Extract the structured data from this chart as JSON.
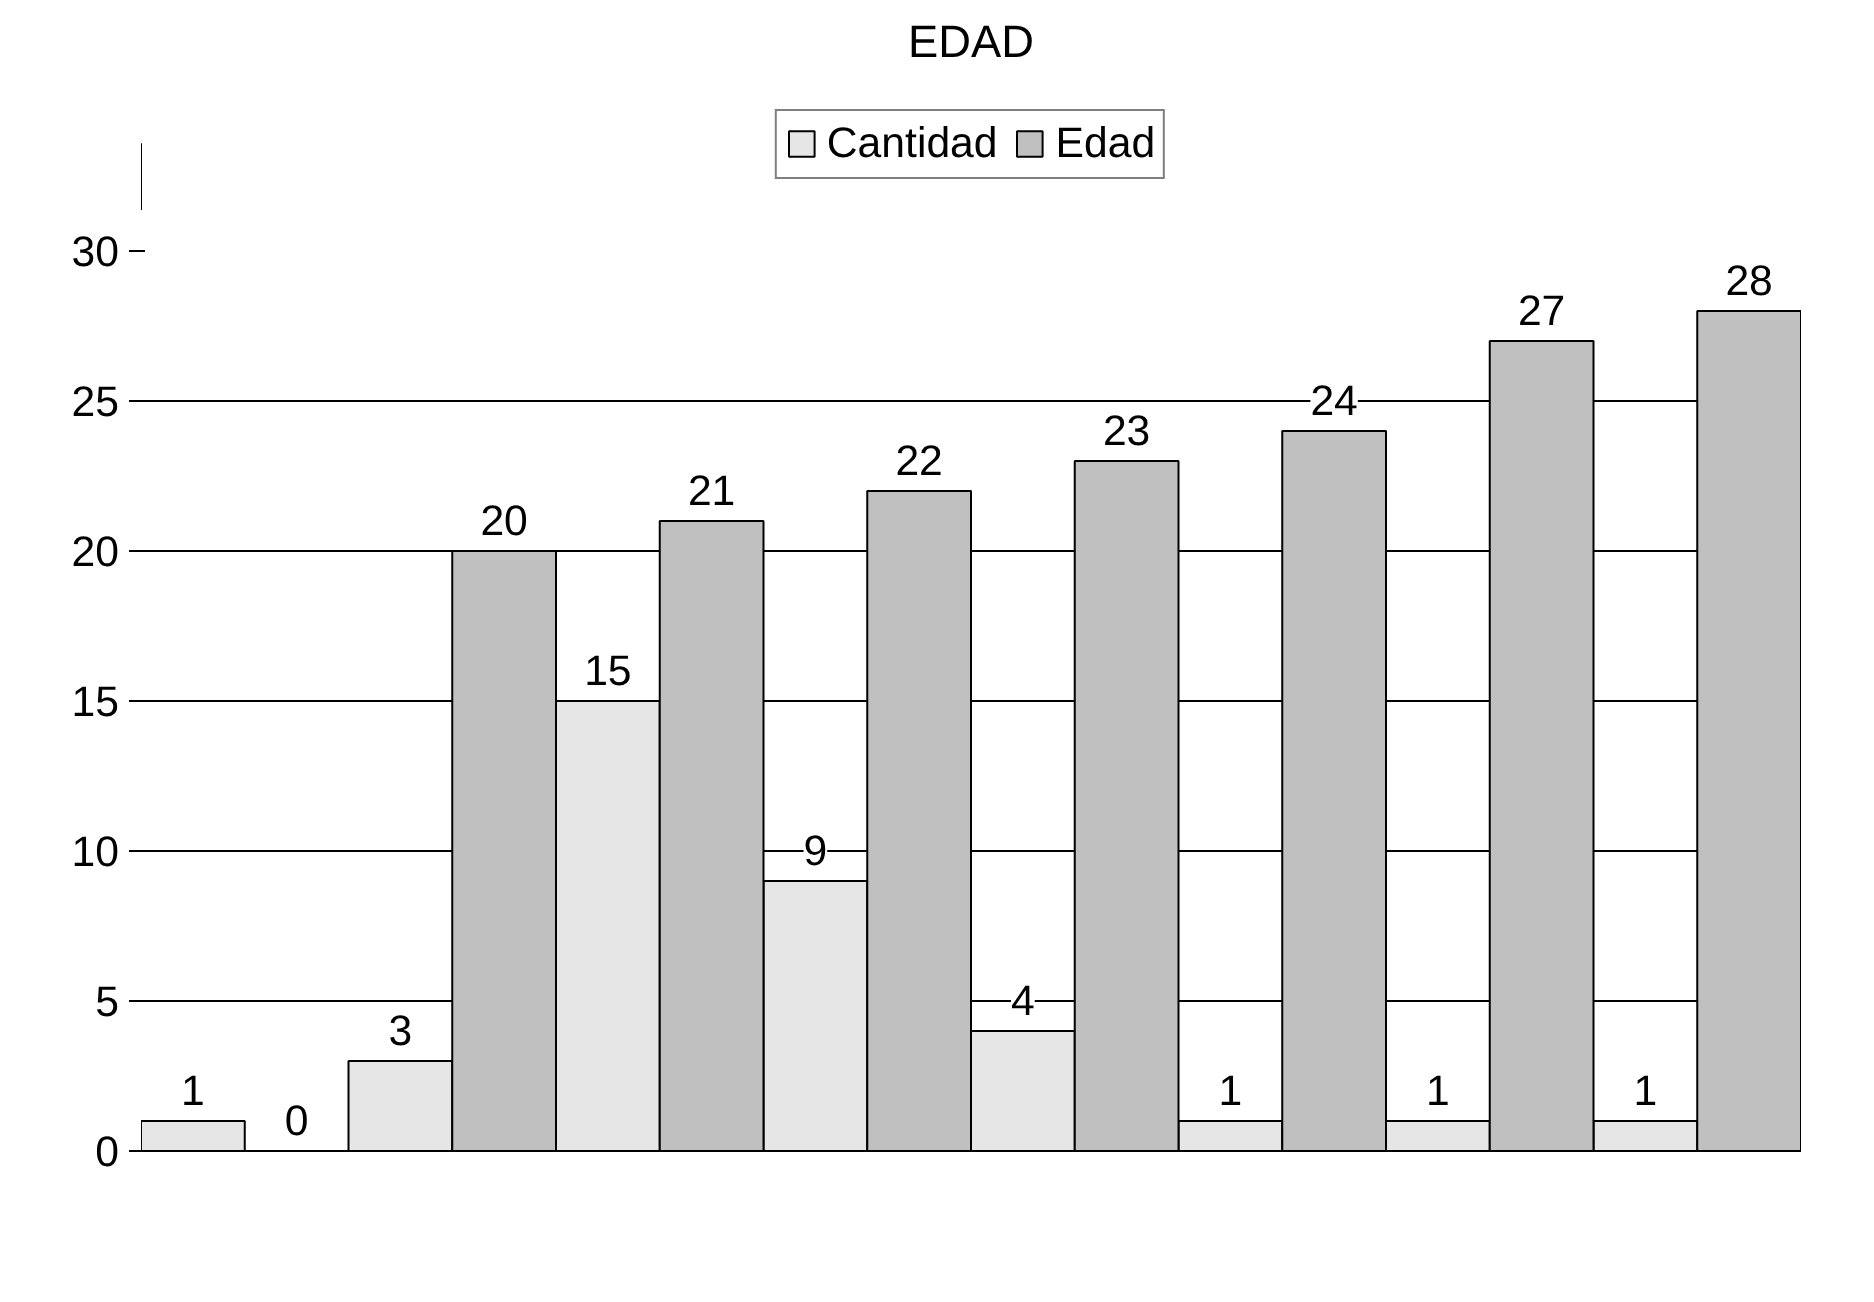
{
  "chart_data": {
    "type": "bar",
    "title": "EDAD",
    "categories": [
      null,
      null,
      null,
      null,
      null,
      null,
      null,
      null
    ],
    "series": [
      {
        "name": "Cantidad",
        "color": "#e6e6e6",
        "values": [
          1,
          3,
          15,
          9,
          4,
          1,
          1,
          1
        ]
      },
      {
        "name": "Edad",
        "color": "#c0c0c0",
        "values": [
          0,
          20,
          21,
          22,
          23,
          24,
          27,
          28
        ]
      }
    ],
    "ylim": [
      0,
      30
    ],
    "yticks": [
      0,
      5,
      10,
      15,
      20,
      25,
      30
    ],
    "grid": "y",
    "legend": "top",
    "data_labels": true
  }
}
